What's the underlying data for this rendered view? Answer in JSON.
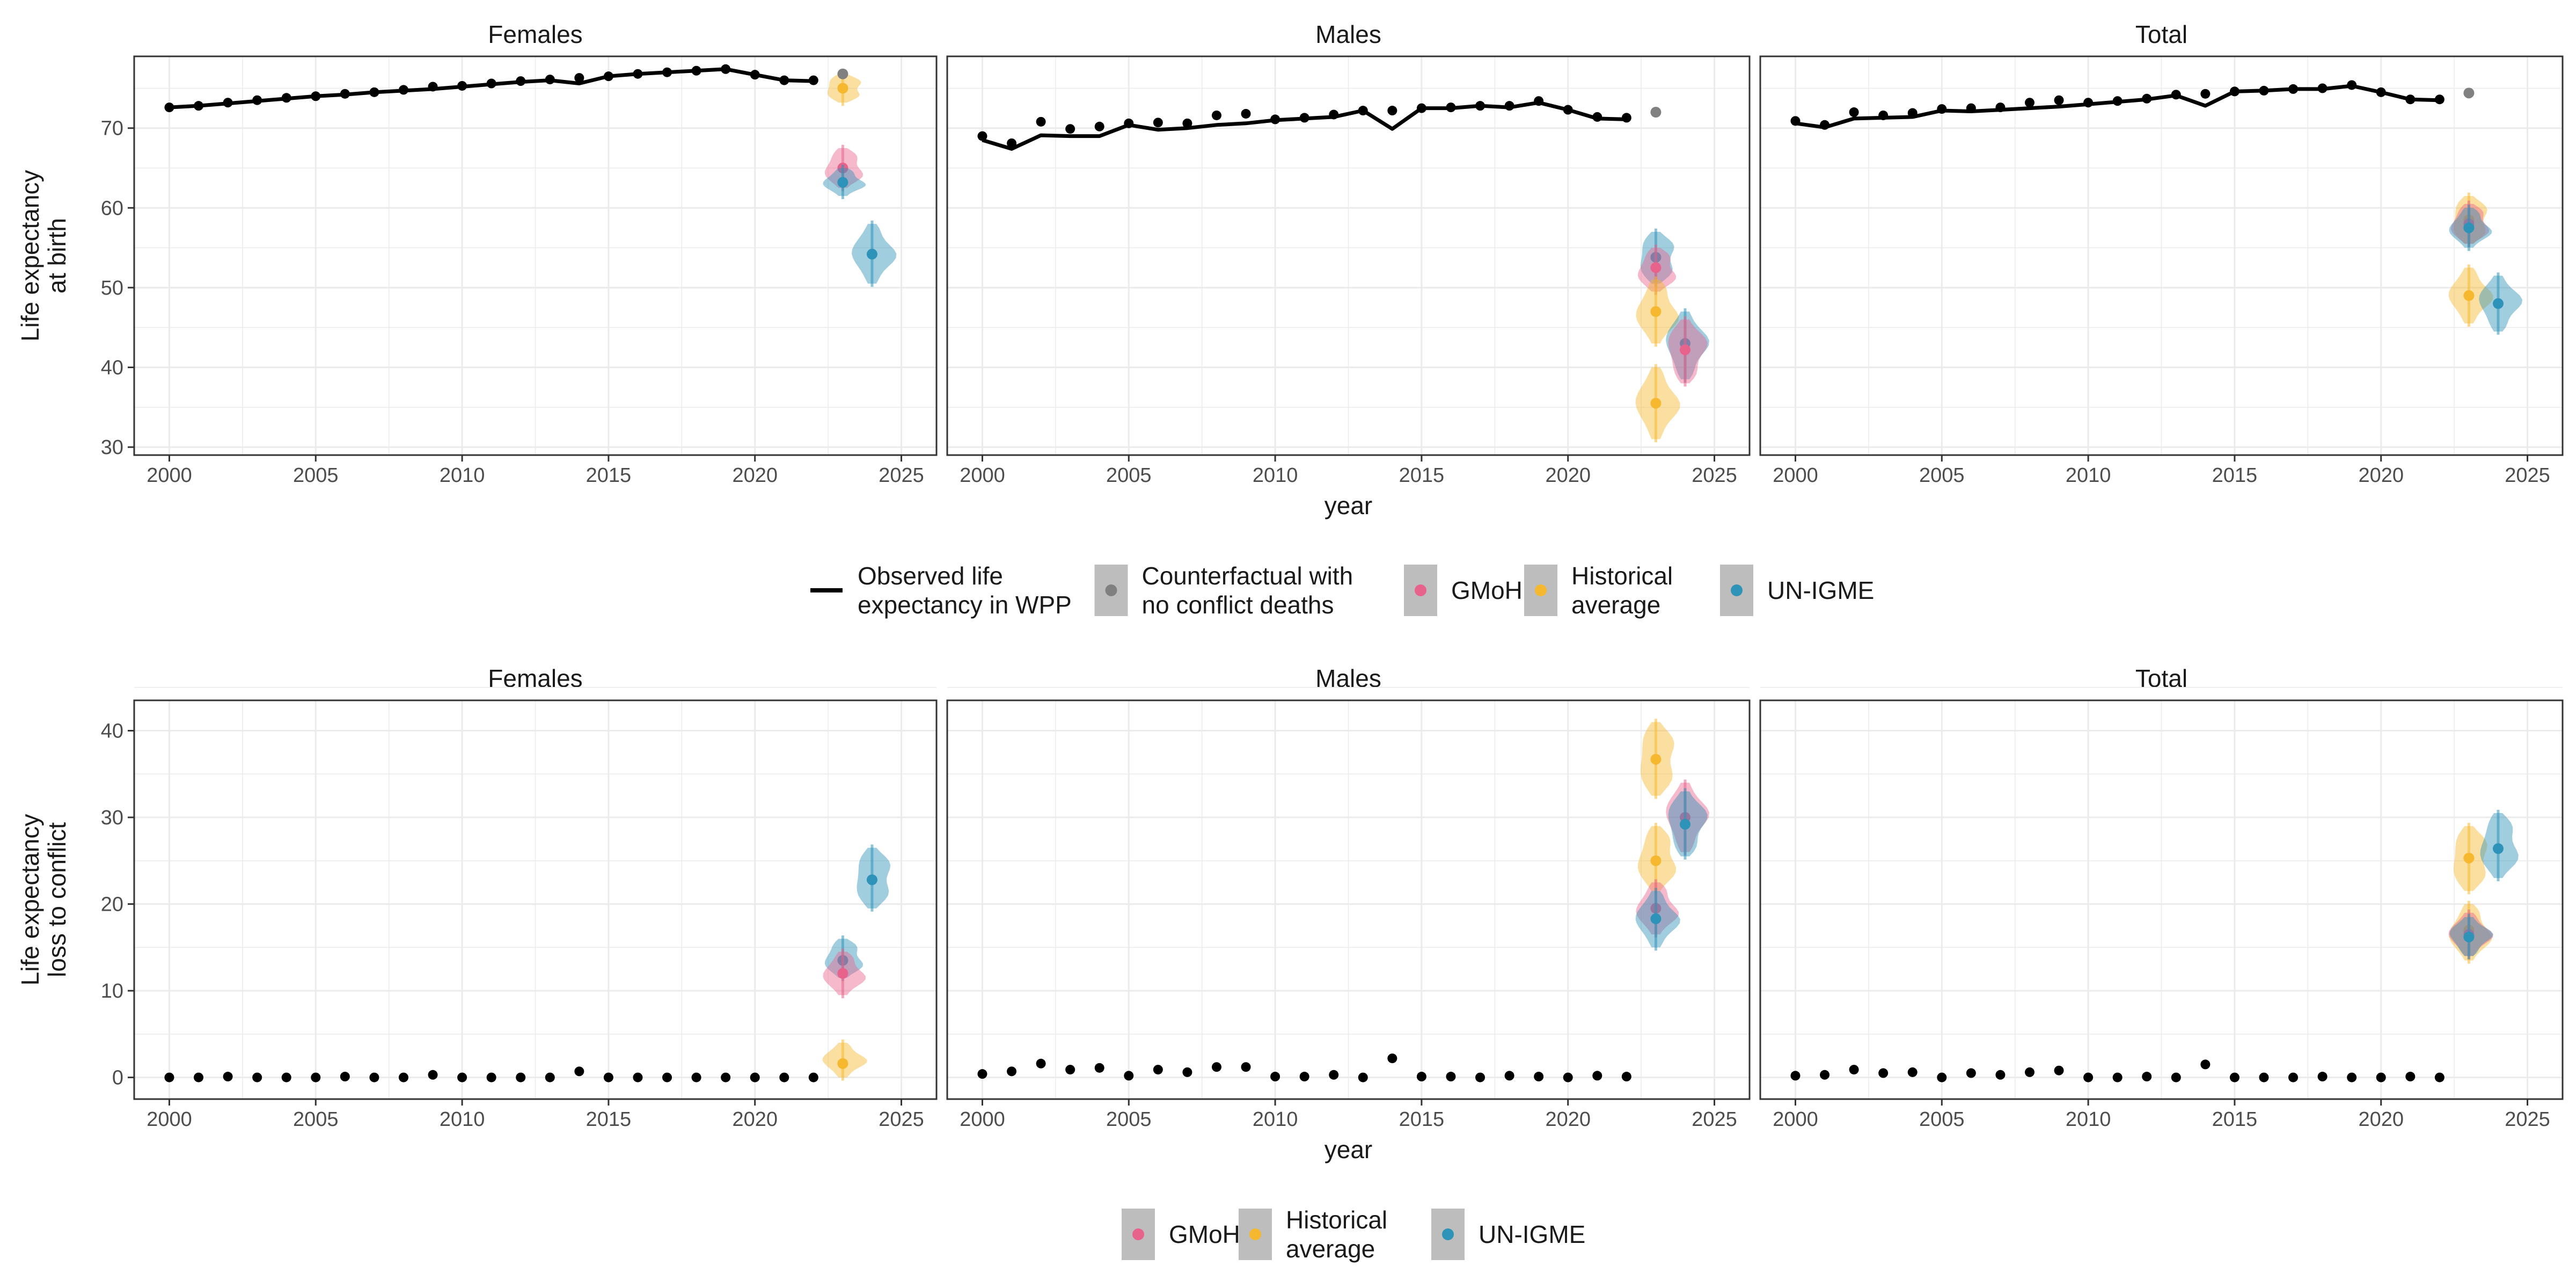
{
  "figure": {
    "x_axis_label": "year",
    "facets": [
      "Females",
      "Males",
      "Total"
    ],
    "x_ticks": [
      2000,
      2005,
      2010,
      2015,
      2020,
      2025
    ]
  },
  "colors": {
    "observed": "#000000",
    "counterfactual": "#808080",
    "gmoh": "#E8638B",
    "historical": "#F5B82E",
    "unigme": "#2E93B8",
    "legend_key_bg": "#BDBDBD",
    "panel_border": "#333333",
    "grid": "#EBEBEB"
  },
  "legend_top": {
    "items": [
      {
        "key": "observed",
        "lines": [
          "Observed life",
          "expectancy in WPP"
        ]
      },
      {
        "key": "counterfactual",
        "lines": [
          "Counterfactual with",
          "no conflict deaths"
        ]
      },
      {
        "key": "gmoh",
        "lines": [
          "GMoH"
        ]
      },
      {
        "key": "historical",
        "lines": [
          "Historical",
          "average"
        ]
      },
      {
        "key": "unigme",
        "lines": [
          "UN-IGME"
        ]
      }
    ]
  },
  "legend_bottom": {
    "items": [
      {
        "key": "gmoh",
        "lines": [
          "GMoH"
        ]
      },
      {
        "key": "historical",
        "lines": [
          "Historical",
          "average"
        ]
      },
      {
        "key": "unigme",
        "lines": [
          "UN-IGME"
        ]
      }
    ]
  },
  "chart_data": [
    {
      "type": "line",
      "ylabel_lines": [
        "Life expectancy",
        "at birth"
      ],
      "ylim": [
        29,
        79
      ],
      "y_ticks": [
        30,
        40,
        50,
        60,
        70
      ],
      "xlim": [
        1998.8,
        2026.2
      ],
      "grid": true,
      "facets": {
        "Females": {
          "observed_line": {
            "x": [
              2000,
              2001,
              2002,
              2003,
              2004,
              2005,
              2006,
              2007,
              2008,
              2009,
              2010,
              2011,
              2012,
              2013,
              2014,
              2015,
              2016,
              2017,
              2018,
              2019,
              2020,
              2021,
              2022
            ],
            "y": [
              72.6,
              72.8,
              73.1,
              73.4,
              73.7,
              74.0,
              74.2,
              74.5,
              74.7,
              74.9,
              75.2,
              75.5,
              75.8,
              76.0,
              75.6,
              76.5,
              76.8,
              77.0,
              77.2,
              77.4,
              76.7,
              76.0,
              75.9
            ]
          },
          "observed_points": {
            "x": [
              2000,
              2001,
              2002,
              2003,
              2004,
              2005,
              2006,
              2007,
              2008,
              2009,
              2010,
              2011,
              2012,
              2013,
              2014,
              2015,
              2016,
              2017,
              2018,
              2019,
              2020,
              2021,
              2022
            ],
            "y": [
              72.6,
              72.8,
              73.2,
              73.5,
              73.8,
              74.0,
              74.3,
              74.5,
              74.8,
              75.2,
              75.3,
              75.6,
              75.9,
              76.1,
              76.3,
              76.5,
              76.8,
              77.0,
              77.2,
              77.4,
              76.7,
              76.0,
              76.0
            ]
          },
          "counterfactual": [
            {
              "x": 2023,
              "y": 76.8
            }
          ],
          "estimates": [
            {
              "key": "historical",
              "x": 2023,
              "y": 75.0,
              "low": 73.2,
              "high": 76.8
            },
            {
              "key": "gmoh",
              "x": 2023,
              "y": 65.0,
              "low": 62.5,
              "high": 67.5
            },
            {
              "key": "unigme",
              "x": 2023,
              "y": 63.2,
              "low": 61.5,
              "high": 65.0
            },
            {
              "key": "unigme",
              "x": 2024,
              "y": 54.2,
              "low": 50.5,
              "high": 58.0
            }
          ]
        },
        "Males": {
          "observed_line": {
            "x": [
              2000,
              2001,
              2002,
              2003,
              2004,
              2005,
              2006,
              2007,
              2008,
              2009,
              2010,
              2011,
              2012,
              2013,
              2014,
              2015,
              2016,
              2017,
              2018,
              2019,
              2020,
              2021,
              2022
            ],
            "y": [
              68.5,
              67.4,
              69.1,
              69.0,
              69.0,
              70.4,
              69.8,
              70.0,
              70.4,
              70.6,
              71.0,
              71.2,
              71.4,
              72.2,
              69.9,
              72.5,
              72.5,
              72.8,
              72.6,
              73.2,
              72.3,
              71.2,
              71.1
            ]
          },
          "observed_points": {
            "x": [
              2000,
              2001,
              2002,
              2003,
              2004,
              2005,
              2006,
              2007,
              2008,
              2009,
              2010,
              2011,
              2012,
              2013,
              2014,
              2015,
              2016,
              2017,
              2018,
              2019,
              2020,
              2021,
              2022
            ],
            "y": [
              69.0,
              68.1,
              70.8,
              69.9,
              70.2,
              70.6,
              70.7,
              70.6,
              71.6,
              71.8,
              71.1,
              71.3,
              71.7,
              72.2,
              72.2,
              72.5,
              72.6,
              72.8,
              72.8,
              73.4,
              72.3,
              71.4,
              71.3
            ]
          },
          "counterfactual": [
            {
              "x": 2023,
              "y": 72.0
            }
          ],
          "estimates": [
            {
              "key": "unigme",
              "x": 2023,
              "y": 53.8,
              "low": 50.5,
              "high": 57.0
            },
            {
              "key": "gmoh",
              "x": 2023,
              "y": 52.5,
              "low": 49.5,
              "high": 55.0
            },
            {
              "key": "historical",
              "x": 2023,
              "y": 47.0,
              "low": 43.0,
              "high": 51.0
            },
            {
              "key": "historical",
              "x": 2023,
              "y": 35.5,
              "low": 31.0,
              "high": 40.0
            },
            {
              "key": "unigme",
              "x": 2024,
              "y": 43.0,
              "low": 38.5,
              "high": 47.0
            },
            {
              "key": "gmoh",
              "x": 2024,
              "y": 42.2,
              "low": 38.0,
              "high": 46.0
            }
          ]
        },
        "Total": {
          "observed_line": {
            "x": [
              2000,
              2001,
              2002,
              2003,
              2004,
              2005,
              2006,
              2007,
              2008,
              2009,
              2010,
              2011,
              2012,
              2013,
              2014,
              2015,
              2016,
              2017,
              2018,
              2019,
              2020,
              2021,
              2022
            ],
            "y": [
              70.6,
              70.1,
              71.2,
              71.3,
              71.4,
              72.2,
              72.1,
              72.3,
              72.5,
              72.7,
              73.0,
              73.3,
              73.6,
              74.1,
              72.8,
              74.6,
              74.7,
              74.9,
              74.9,
              75.3,
              74.5,
              73.6,
              73.5
            ]
          },
          "observed_points": {
            "x": [
              2000,
              2001,
              2002,
              2003,
              2004,
              2005,
              2006,
              2007,
              2008,
              2009,
              2010,
              2011,
              2012,
              2013,
              2014,
              2015,
              2016,
              2017,
              2018,
              2019,
              2020,
              2021,
              2022
            ],
            "y": [
              70.9,
              70.4,
              72.0,
              71.6,
              71.9,
              72.4,
              72.5,
              72.6,
              73.2,
              73.5,
              73.2,
              73.4,
              73.7,
              74.2,
              74.3,
              74.6,
              74.7,
              74.9,
              75.0,
              75.4,
              74.5,
              73.6,
              73.6
            ]
          },
          "counterfactual": [
            {
              "x": 2023,
              "y": 74.4
            }
          ],
          "estimates": [
            {
              "key": "historical",
              "x": 2023,
              "y": 58.5,
              "low": 55.5,
              "high": 61.5
            },
            {
              "key": "gmoh",
              "x": 2023,
              "y": 58.0,
              "low": 55.5,
              "high": 60.5
            },
            {
              "key": "unigme",
              "x": 2023,
              "y": 57.5,
              "low": 55.0,
              "high": 60.0
            },
            {
              "key": "historical",
              "x": 2023,
              "y": 49.0,
              "low": 45.5,
              "high": 52.5
            },
            {
              "key": "unigme",
              "x": 2024,
              "y": 48.0,
              "low": 44.5,
              "high": 51.5
            }
          ]
        }
      }
    },
    {
      "type": "scatter",
      "ylabel_lines": [
        "Life expectancy",
        "loss to conflict"
      ],
      "ylim": [
        -2.5,
        43.5
      ],
      "y_ticks": [
        0,
        10,
        20,
        30,
        40
      ],
      "xlim": [
        1998.8,
        2026.2
      ],
      "grid": true,
      "facets": {
        "Females": {
          "observed_points": {
            "x": [
              2000,
              2001,
              2002,
              2003,
              2004,
              2005,
              2006,
              2007,
              2008,
              2009,
              2010,
              2011,
              2012,
              2013,
              2014,
              2015,
              2016,
              2017,
              2018,
              2019,
              2020,
              2021,
              2022
            ],
            "y": [
              0.0,
              0.0,
              0.1,
              0.0,
              0.0,
              0.0,
              0.1,
              0.0,
              0.0,
              0.3,
              0.0,
              0.0,
              0.0,
              0.0,
              0.7,
              0.0,
              0.0,
              0.0,
              0.0,
              0.0,
              0.0,
              0.0,
              0.0
            ]
          },
          "estimates": [
            {
              "key": "unigme",
              "x": 2024,
              "y": 22.8,
              "low": 19.5,
              "high": 26.5
            },
            {
              "key": "unigme",
              "x": 2023,
              "y": 13.5,
              "low": 11.5,
              "high": 16.0
            },
            {
              "key": "gmoh",
              "x": 2023,
              "y": 12.0,
              "low": 9.5,
              "high": 14.5
            },
            {
              "key": "historical",
              "x": 2023,
              "y": 1.6,
              "low": 0.0,
              "high": 4.0
            }
          ]
        },
        "Males": {
          "observed_points": {
            "x": [
              2000,
              2001,
              2002,
              2003,
              2004,
              2005,
              2006,
              2007,
              2008,
              2009,
              2010,
              2011,
              2012,
              2013,
              2014,
              2015,
              2016,
              2017,
              2018,
              2019,
              2020,
              2021,
              2022
            ],
            "y": [
              0.4,
              0.7,
              1.6,
              0.9,
              1.1,
              0.2,
              0.9,
              0.6,
              1.2,
              1.2,
              0.1,
              0.1,
              0.3,
              0.0,
              2.2,
              0.1,
              0.1,
              0.0,
              0.2,
              0.1,
              0.0,
              0.2,
              0.1
            ]
          },
          "estimates": [
            {
              "key": "historical",
              "x": 2023,
              "y": 36.7,
              "low": 32.5,
              "high": 41.0
            },
            {
              "key": "historical",
              "x": 2023,
              "y": 25.0,
              "low": 21.5,
              "high": 29.0
            },
            {
              "key": "gmoh",
              "x": 2023,
              "y": 19.5,
              "low": 16.5,
              "high": 22.5
            },
            {
              "key": "unigme",
              "x": 2023,
              "y": 18.3,
              "low": 15.0,
              "high": 21.5
            },
            {
              "key": "gmoh",
              "x": 2024,
              "y": 30.0,
              "low": 26.0,
              "high": 34.0
            },
            {
              "key": "unigme",
              "x": 2024,
              "y": 29.2,
              "low": 25.5,
              "high": 33.0
            }
          ]
        },
        "Total": {
          "observed_points": {
            "x": [
              2000,
              2001,
              2002,
              2003,
              2004,
              2005,
              2006,
              2007,
              2008,
              2009,
              2010,
              2011,
              2012,
              2013,
              2014,
              2015,
              2016,
              2017,
              2018,
              2019,
              2020,
              2021,
              2022
            ],
            "y": [
              0.2,
              0.3,
              0.9,
              0.5,
              0.6,
              0.0,
              0.5,
              0.3,
              0.6,
              0.8,
              0.0,
              0.0,
              0.1,
              0.0,
              1.5,
              0.0,
              0.0,
              0.0,
              0.1,
              0.0,
              0.0,
              0.1,
              0.0
            ]
          },
          "estimates": [
            {
              "key": "historical",
              "x": 2023,
              "y": 25.3,
              "low": 21.5,
              "high": 29.0
            },
            {
              "key": "unigme",
              "x": 2024,
              "y": 26.4,
              "low": 23.0,
              "high": 30.5
            },
            {
              "key": "historical",
              "x": 2023,
              "y": 17.0,
              "low": 13.5,
              "high": 20.0
            },
            {
              "key": "gmoh",
              "x": 2023,
              "y": 16.5,
              "low": 14.0,
              "high": 19.0
            },
            {
              "key": "unigme",
              "x": 2023,
              "y": 16.2,
              "low": 14.0,
              "high": 18.5
            }
          ]
        }
      }
    }
  ]
}
